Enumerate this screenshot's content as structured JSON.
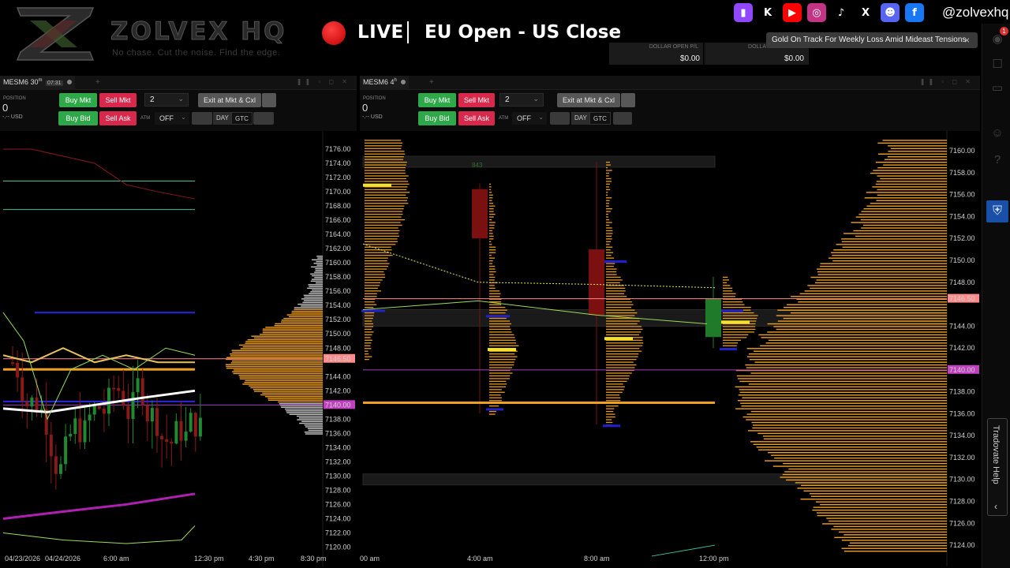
{
  "branding": {
    "brand_name": "ZOLVEX HQ",
    "tagline": "No chase. Cut the noise. Find the edge.",
    "live_label": "LIVE",
    "session_label": "EU Open - US Close",
    "handle": "@zolvexhq"
  },
  "socials": [
    {
      "name": "twitch",
      "glyph": "▮",
      "color": "#9146ff"
    },
    {
      "name": "kick",
      "glyph": "K",
      "color": "#000000"
    },
    {
      "name": "youtube",
      "glyph": "▶",
      "color": "#ff0000"
    },
    {
      "name": "instagram",
      "glyph": "◎",
      "color": "#c13584"
    },
    {
      "name": "tiktok",
      "glyph": "♪",
      "color": "#000000"
    },
    {
      "name": "x",
      "glyph": "X",
      "color": "#000000"
    },
    {
      "name": "discord",
      "glyph": "☻",
      "color": "#5865f2"
    },
    {
      "name": "facebook",
      "glyph": "f",
      "color": "#1877f2"
    }
  ],
  "account": {
    "col1_header": "DOLLAR OPEN P/L",
    "col1_value": "$0.00",
    "col2_header": "DOLLA",
    "col2_value": "$0.00"
  },
  "notification": {
    "text": "Gold On Track For Weekly Loss Amid Mideast Tensions",
    "close_glyph": "×"
  },
  "sidebar": {
    "badge_count": "1",
    "help_label": "Tradovate Help"
  },
  "left_panel": {
    "tab_symbol": "MESM6 30",
    "tab_suffix": "m",
    "tab_timer": "07:31",
    "position_label": "POSITION",
    "position_value": "0",
    "position_currency": "-.-- USD",
    "buy_mkt": "Buy Mkt",
    "sell_mkt": "Sell Mkt",
    "buy_bid": "Buy Bid",
    "sell_ask": "Sell Ask",
    "quantity": "2",
    "exit_label": "Exit at Mkt & Cxl",
    "atm_label": "ATM",
    "atm_value": "OFF",
    "tif_day": "DAY",
    "tif_gtc": "GTC",
    "price_labels": [
      "7176.00",
      "7174.00",
      "7172.00",
      "7170.00",
      "7168.00",
      "7166.00",
      "7164.00",
      "7162.00",
      "7160.00",
      "7158.00",
      "7156.00",
      "7154.00",
      "7152.00",
      "7150.00",
      "7148.00",
      "7146.50",
      "7144.00",
      "7142.00",
      "7140.00",
      "7138.00",
      "7136.00",
      "7134.00",
      "7132.00",
      "7130.00",
      "7128.00",
      "7126.00",
      "7124.00",
      "7122.00",
      "7120.00"
    ],
    "highlight_current": "7146.50",
    "highlight_level": "7140.00",
    "time_labels": [
      "04/23/2026",
      "04/24/2026",
      "6:00 am",
      "12:30 pm",
      "4:30 pm",
      "8:30 pm"
    ]
  },
  "right_panel": {
    "tab_symbol": "MESM6 4",
    "tab_suffix": "h",
    "position_label": "POSITION",
    "position_value": "0",
    "position_currency": "-.-- USD",
    "buy_mkt": "Buy Mkt",
    "sell_mkt": "Sell Mkt",
    "buy_bid": "Buy Bid",
    "sell_ask": "Sell Ask",
    "quantity": "2",
    "exit_label": "Exit at Mkt & Cxl",
    "atm_label": "ATM",
    "atm_value": "OFF",
    "tif_day": "DAY",
    "tif_gtc": "GTC",
    "volume_label": "843",
    "price_labels": [
      "7160.00",
      "7158.00",
      "7156.00",
      "7154.00",
      "7152.00",
      "7150.00",
      "7148.00",
      "7146.50",
      "7144.00",
      "7142.00",
      "7140.00",
      "7138.00",
      "7136.00",
      "7134.00",
      "7132.00",
      "7130.00",
      "7128.00",
      "7126.00",
      "7124.00"
    ],
    "highlight_current": "7146.50",
    "highlight_level": "7140.00",
    "time_labels": [
      "00 am",
      "4:00 am",
      "8:00 am",
      "12:00 pm"
    ]
  },
  "colors": {
    "buy": "#2fa84a",
    "sell": "#d8294c",
    "profile": "#f0a020",
    "current_price": "#ff8a8a",
    "level": "#c040c0"
  }
}
